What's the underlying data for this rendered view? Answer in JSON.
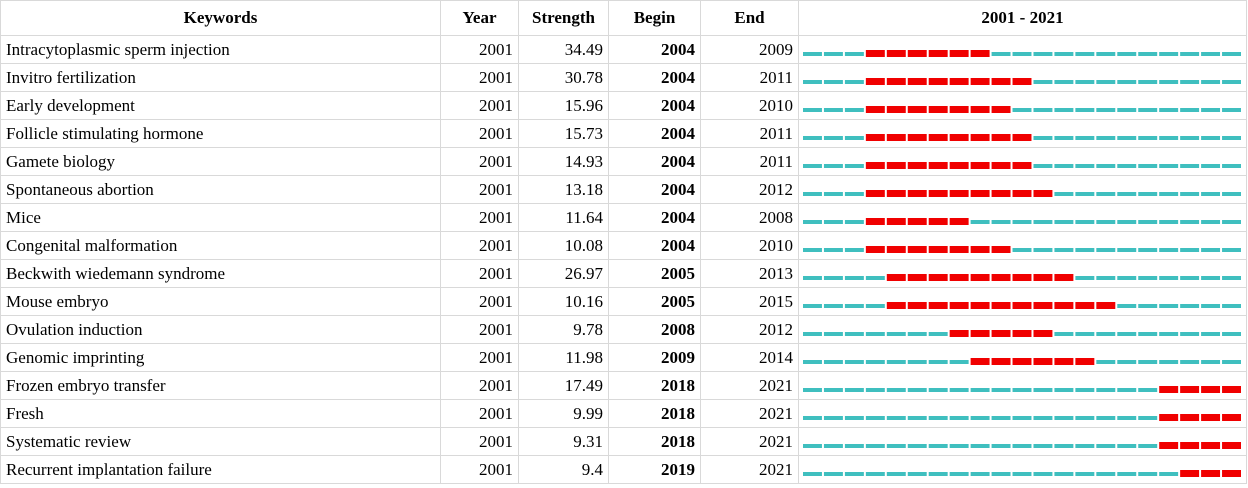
{
  "table": {
    "columns": [
      "Keywords",
      "Year",
      "Strength",
      "Begin",
      "End",
      "2001 - 2021"
    ],
    "rows": [
      [
        "Intracytoplasmic sperm injection",
        2001,
        34.49,
        2004,
        2009
      ],
      [
        "Invitro fertilization",
        2001,
        30.78,
        2004,
        2011
      ],
      [
        "Early development",
        2001,
        15.96,
        2004,
        2010
      ],
      [
        "Follicle stimulating hormone",
        2001,
        15.73,
        2004,
        2011
      ],
      [
        "Gamete biology",
        2001,
        14.93,
        2004,
        2011
      ],
      [
        "Spontaneous abortion",
        2001,
        13.18,
        2004,
        2012
      ],
      [
        "Mice",
        2001,
        11.64,
        2004,
        2008
      ],
      [
        "Congenital malformation",
        2001,
        10.08,
        2004,
        2010
      ],
      [
        "Beckwith wiedemann syndrome",
        2001,
        26.97,
        2005,
        2013
      ],
      [
        "Mouse embryo",
        2001,
        10.16,
        2005,
        2015
      ],
      [
        "Ovulation induction",
        2001,
        9.78,
        2008,
        2012
      ],
      [
        "Genomic imprinting",
        2001,
        11.98,
        2009,
        2014
      ],
      [
        "Frozen embryo transfer",
        2001,
        17.49,
        2018,
        2021
      ],
      [
        "Fresh",
        2001,
        9.99,
        2018,
        2021
      ],
      [
        "Systematic review",
        2001,
        9.31,
        2018,
        2021
      ],
      [
        "Recurrent implantation failure",
        2001,
        9.4,
        2019,
        2021
      ]
    ]
  }
}
